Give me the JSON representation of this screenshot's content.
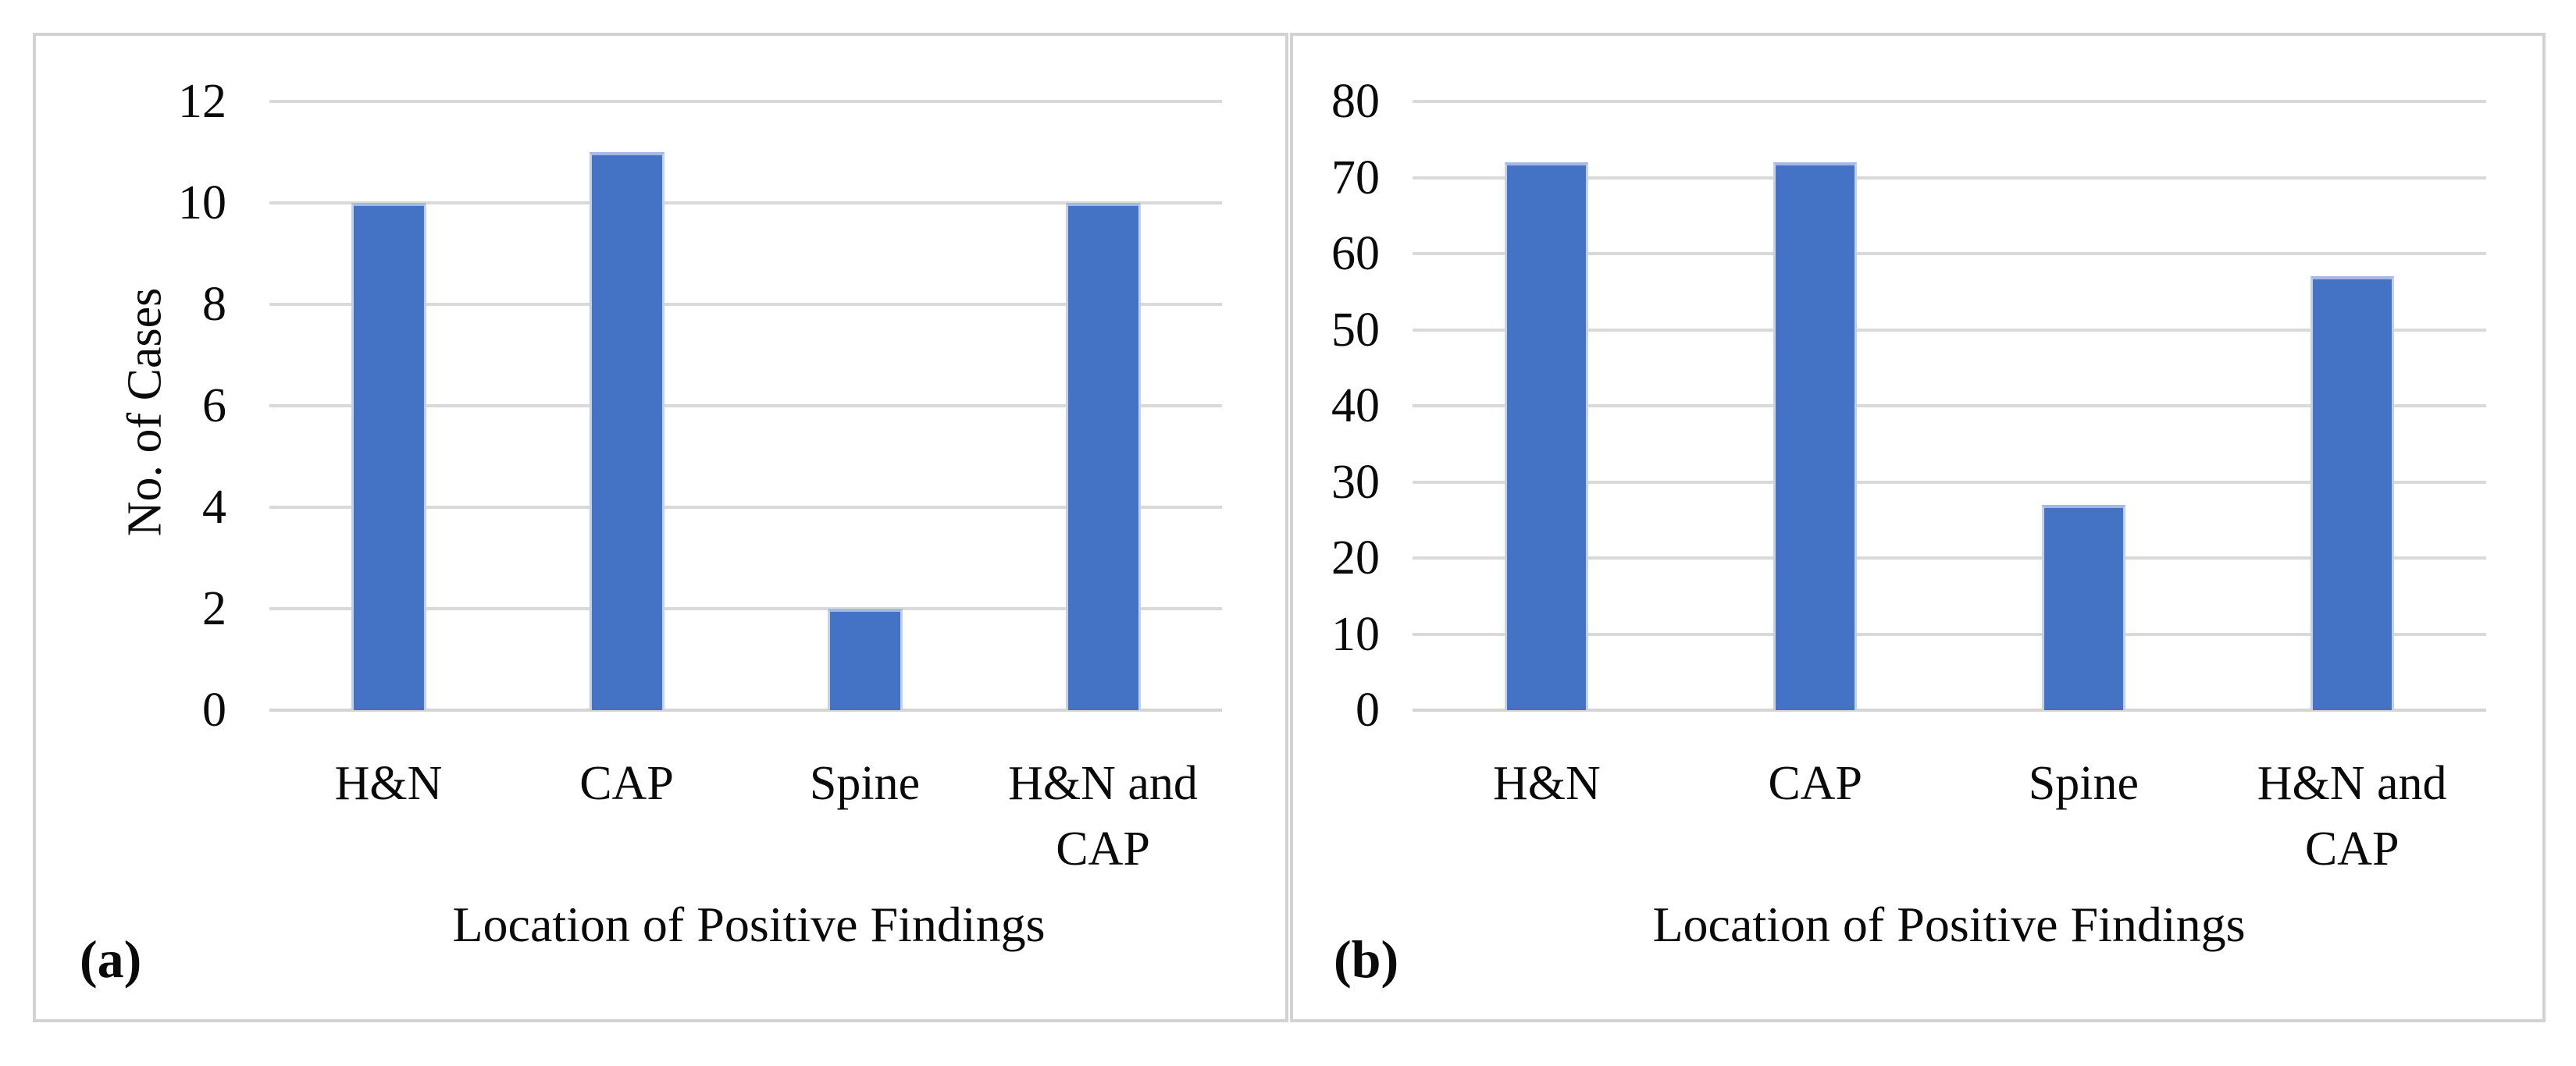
{
  "figure": {
    "description_colors": {
      "bar_fill": "#4472C4",
      "bar_top_edge": "#a4b8e2",
      "gridline": "#d9d9d9",
      "panel_border": "#d2d2d2",
      "text": "#0a0a0a",
      "background": "#ffffff"
    }
  },
  "chart_data": [
    {
      "type": "bar",
      "panel_label": "(a)",
      "title": "",
      "categories": [
        "H&N",
        "CAP",
        "Spine",
        "H&N and CAP"
      ],
      "category_lines": [
        [
          "H&N"
        ],
        [
          "CAP"
        ],
        [
          "Spine"
        ],
        [
          "H&N and",
          "CAP"
        ]
      ],
      "values": [
        10,
        11,
        2,
        10
      ],
      "xlabel": "Location of Positive Findings",
      "ylabel": "No. of Cases",
      "ylim": [
        0,
        12
      ],
      "yticks": [
        0,
        2,
        4,
        6,
        8,
        10,
        12
      ],
      "grid": true,
      "legend": "none",
      "bar_color": "#4472C4"
    },
    {
      "type": "bar",
      "panel_label": "(b)",
      "title": "",
      "categories": [
        "H&N",
        "CAP",
        "Spine",
        "H&N and CAP"
      ],
      "category_lines": [
        [
          "H&N"
        ],
        [
          "CAP"
        ],
        [
          "Spine"
        ],
        [
          "H&N and",
          "CAP"
        ]
      ],
      "values": [
        72,
        72,
        27,
        57
      ],
      "xlabel": "Location of Positive Findings",
      "ylabel": "",
      "ylim": [
        0,
        80
      ],
      "yticks": [
        0,
        10,
        20,
        30,
        40,
        50,
        60,
        70,
        80
      ],
      "grid": true,
      "legend": "none",
      "bar_color": "#4472C4"
    }
  ]
}
